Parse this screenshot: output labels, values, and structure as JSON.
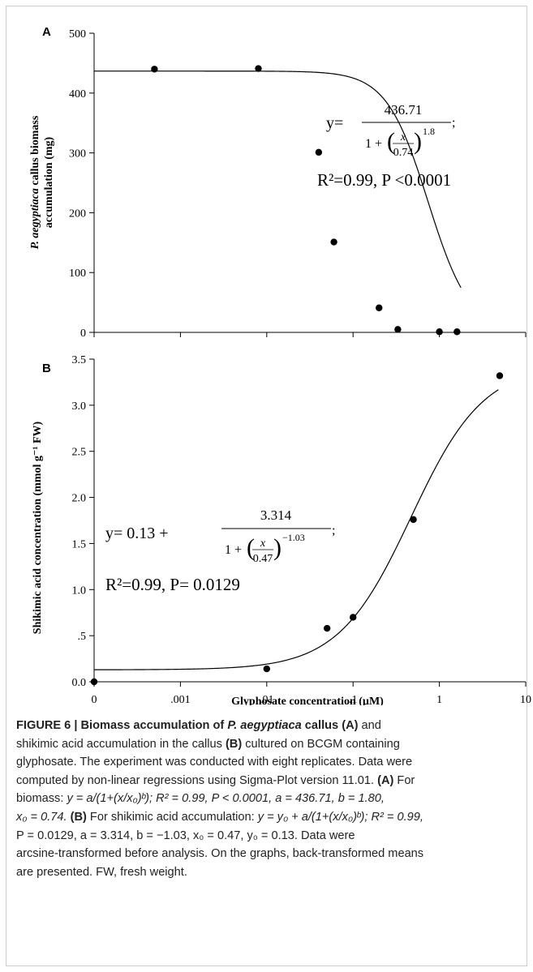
{
  "chart_data": [
    {
      "type": "scatter",
      "panel_label": "A",
      "ylabel_italic": "P. aegyptiaca",
      "ylabel_rest": " callus biomass",
      "ylabel_line2": "accumulation (mg)",
      "ylim": [
        0,
        500
      ],
      "y_ticks": [
        "0",
        "100",
        "200",
        "300",
        "400",
        "500"
      ],
      "x_scale": "log",
      "xlim": [
        0.0001,
        10
      ],
      "grid": false,
      "points": [
        {
          "x": 0.0005,
          "y": 440
        },
        {
          "x": 0.008,
          "y": 441
        },
        {
          "x": 0.04,
          "y": 301
        },
        {
          "x": 0.06,
          "y": 151
        },
        {
          "x": 0.2,
          "y": 41
        },
        {
          "x": 0.33,
          "y": 5
        },
        {
          "x": 1,
          "y": 1
        },
        {
          "x": 1.6,
          "y": 1
        }
      ],
      "fit": {
        "a": 436.71,
        "b": 1.8,
        "x0": 0.74,
        "y0": 0
      },
      "equation": {
        "lhs": "y=",
        "numerator": "436.71",
        "denominator_pre": "1 + ",
        "frac_num": "x",
        "frac_den": "0.74",
        "exponent": "1.8",
        "suffix": ";"
      },
      "r2_text": "R²=0.99, P <0.0001"
    },
    {
      "type": "scatter",
      "panel_label": "B",
      "ylabel": "Shikimic acid concentration (mmol g⁻¹ FW)",
      "ylim": [
        0,
        3.5
      ],
      "y_ticks": [
        "0.0",
        ".5",
        "1.0",
        "1.5",
        "2.0",
        "2.5",
        "3.0",
        "3.5"
      ],
      "x_scale": "log",
      "xlim": [
        0.0001,
        10
      ],
      "x_ticks": [
        {
          "value": 0.0001,
          "label": "0"
        },
        {
          "value": 0.001,
          "label": ".001"
        },
        {
          "value": 0.01,
          "label": ".01"
        },
        {
          "value": 0.1,
          "label": ".1"
        },
        {
          "value": 1,
          "label": "1"
        },
        {
          "value": 10,
          "label": "10"
        }
      ],
      "xlabel": "Glyphosate concentration (µM)",
      "grid": false,
      "points": [
        {
          "x": 0.0001,
          "y": 0.0
        },
        {
          "x": 0.01,
          "y": 0.14
        },
        {
          "x": 0.05,
          "y": 0.58
        },
        {
          "x": 0.1,
          "y": 0.7
        },
        {
          "x": 0.5,
          "y": 1.76
        },
        {
          "x": 5,
          "y": 3.32
        }
      ],
      "fit": {
        "a": 3.314,
        "b": -1.03,
        "x0": 0.47,
        "y0": 0.13
      },
      "equation": {
        "lhs": "y= 0.13 + ",
        "numerator": "3.314",
        "denominator_pre": "1 + ",
        "frac_num": "x",
        "frac_den": "0.47",
        "exponent": "−1.03",
        "suffix": ";"
      },
      "r2_text": "R²=0.99, P= 0.0129"
    }
  ],
  "caption": {
    "l1_fig": "FIGURE 6 | Biomass accumulation of ",
    "l1_it": "P. aegyptiaca",
    "l1_b2": " callus (A)",
    "l1_rest": " and",
    "l2_a": "shikimic acid accumulation in the callus ",
    "l2_b": "(B)",
    "l2_c": " cultured on BCGM containing",
    "l3": "glyphosate. The experiment was conducted with eight replicates. Data were",
    "l4_a": "computed by non-linear regressions using Sigma-Plot version 11.01. ",
    "l4_b": "(A)",
    "l4_c": " For",
    "l5_a": "biomass: ",
    "l5_eq": "y = a/(1+(x/x₀)ᵇ); R² = 0.99, P < 0.0001, a = 436.71, b = 1.80,",
    "l6_a": "x₀ = 0.74. ",
    "l6_b": "(B)",
    "l6_c": " For shikimic acid accumulation: ",
    "l6_eq": "y = y₀ + a/(1+(x/x₀)ᵇ); R² = 0.99,",
    "l7": "P = 0.0129, a = 3.314, b = −1.03, x₀ = 0.47, y₀ = 0.13. Data were",
    "l8": "arcsine-transformed before analysis. On the graphs, back-transformed means",
    "l9": "are presented. FW, fresh weight."
  }
}
